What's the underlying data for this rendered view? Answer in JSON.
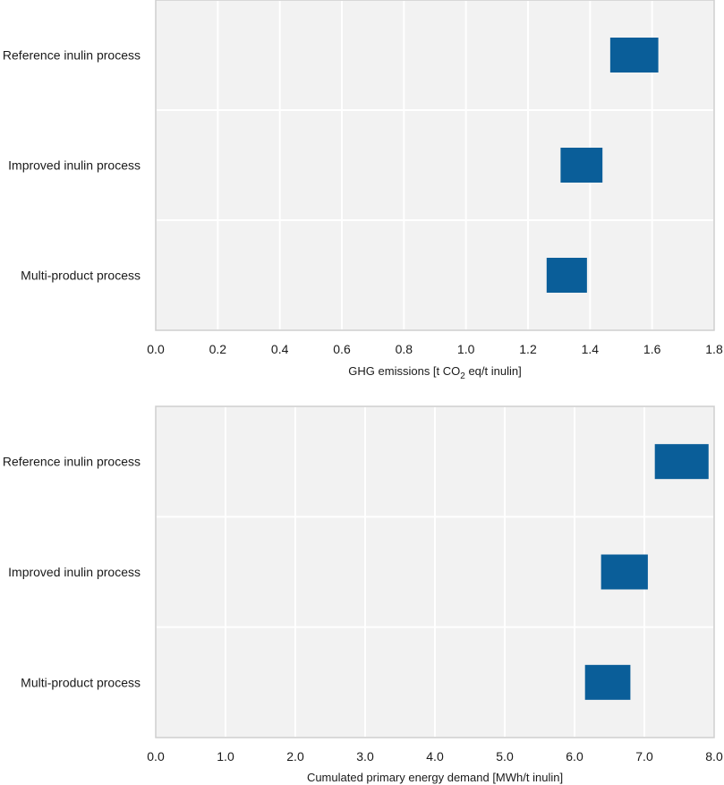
{
  "chart_data": [
    {
      "type": "floating-bar",
      "orientation": "horizontal",
      "categories": [
        "Reference inulin process",
        "Improved inulin process",
        "Multi-product process"
      ],
      "ranges": [
        [
          1.465,
          1.62
        ],
        [
          1.305,
          1.44
        ],
        [
          1.26,
          1.39
        ]
      ],
      "xlim": [
        0.0,
        1.8
      ],
      "xticks": [
        "0.0",
        "0.2",
        "0.4",
        "0.6",
        "0.8",
        "1.0",
        "1.2",
        "1.4",
        "1.6",
        "1.8"
      ],
      "xlabel": {
        "pre": "GHG emissions [t CO",
        "sub": "2",
        "post": " eq/t inulin]"
      },
      "color": "#0a5e99",
      "grid": true
    },
    {
      "type": "floating-bar",
      "orientation": "horizontal",
      "categories": [
        "Reference inulin process",
        "Improved inulin process",
        "Multi-product process"
      ],
      "ranges": [
        [
          7.15,
          7.92
        ],
        [
          6.38,
          7.05
        ],
        [
          6.15,
          6.8
        ]
      ],
      "xlim": [
        0.0,
        8.0
      ],
      "xticks": [
        "0.0",
        "1.0",
        "2.0",
        "3.0",
        "4.0",
        "5.0",
        "6.0",
        "7.0",
        "8.0"
      ],
      "xlabel": {
        "pre": "Cumulated primary energy demand [MWh/t inulin]",
        "sub": "",
        "post": ""
      },
      "color": "#0a5e99",
      "grid": true
    }
  ]
}
